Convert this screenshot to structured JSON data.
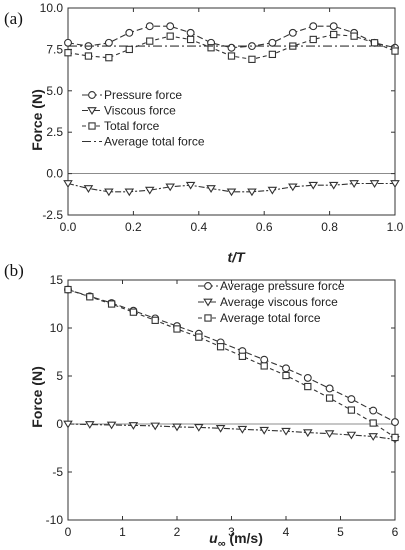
{
  "chart_data": [
    {
      "panel_label": "(a)",
      "type": "line",
      "xlabel_text": "t/T",
      "ylabel": "Force (N)",
      "xlim": [
        0.0,
        1.0
      ],
      "ylim": [
        -2.5,
        10.0
      ],
      "xticks": [
        "0.0",
        "0.2",
        "0.4",
        "0.6",
        "0.8",
        "1.0"
      ],
      "yticks": [
        "-2.5",
        "0.0",
        "2.5",
        "5.0",
        "7.5",
        "10.0"
      ],
      "legend_position": "center-left",
      "x": [
        0.0,
        0.0625,
        0.125,
        0.1875,
        0.25,
        0.3125,
        0.375,
        0.4375,
        0.5,
        0.5625,
        0.625,
        0.6875,
        0.75,
        0.8125,
        0.875,
        0.9375,
        1.0
      ],
      "series": [
        {
          "name": "Pressure force",
          "marker": "circle",
          "dash": "6,3",
          "values": [
            7.9,
            7.7,
            7.9,
            8.5,
            8.9,
            8.9,
            8.5,
            7.9,
            7.6,
            7.7,
            7.9,
            8.5,
            8.9,
            8.9,
            8.5,
            7.9,
            7.6
          ]
        },
        {
          "name": "Viscous force",
          "marker": "triangle",
          "dash": "6,2,2,2",
          "values": [
            -0.6,
            -0.9,
            -1.1,
            -1.1,
            -1.0,
            -0.8,
            -0.7,
            -0.9,
            -1.1,
            -1.1,
            -1.0,
            -0.8,
            -0.7,
            -0.7,
            -0.6,
            -0.6,
            -0.6
          ]
        },
        {
          "name": "Total force",
          "marker": "square",
          "dash": "4,3",
          "values": [
            7.3,
            7.1,
            7.0,
            7.5,
            8.0,
            8.3,
            8.1,
            7.6,
            7.1,
            6.9,
            7.2,
            7.7,
            8.1,
            8.4,
            8.3,
            7.9,
            7.4
          ]
        },
        {
          "name": "Average total force",
          "marker": "none",
          "dash": "9,3,2,3",
          "values": [
            7.7,
            7.7,
            7.7,
            7.7,
            7.7,
            7.7,
            7.7,
            7.7,
            7.7,
            7.7,
            7.7,
            7.7,
            7.7,
            7.7,
            7.7,
            7.7,
            7.7
          ]
        }
      ]
    },
    {
      "panel_label": "(b)",
      "type": "line",
      "xlabel_text": "u",
      "xlabel_sub": "∞",
      "xlabel_unit": " (m/s)",
      "ylabel": "Force (N)",
      "xlim": [
        0,
        6
      ],
      "ylim": [
        -10,
        15
      ],
      "xticks": [
        "0",
        "1",
        "2",
        "3",
        "4",
        "5",
        "6"
      ],
      "yticks": [
        "-10",
        "-5",
        "0",
        "5",
        "10",
        "15"
      ],
      "legend_position": "top-right",
      "x": [
        0,
        0.4,
        0.8,
        1.2,
        1.6,
        2.0,
        2.4,
        2.8,
        3.2,
        3.6,
        4.0,
        4.4,
        4.8,
        5.2,
        5.6,
        6.0
      ],
      "series": [
        {
          "name": "Average pressure force",
          "marker": "circle",
          "dash": "6,3",
          "values": [
            14.0,
            13.3,
            12.6,
            11.8,
            11.0,
            10.2,
            9.4,
            8.5,
            7.6,
            6.7,
            5.8,
            4.8,
            3.7,
            2.6,
            1.4,
            0.2
          ]
        },
        {
          "name": "Average viscous force",
          "marker": "triangle",
          "dash": "6,2,2,2",
          "values": [
            0.0,
            -0.05,
            -0.1,
            -0.15,
            -0.2,
            -0.3,
            -0.35,
            -0.45,
            -0.55,
            -0.65,
            -0.75,
            -0.9,
            -1.0,
            -1.15,
            -1.3,
            -1.6
          ]
        },
        {
          "name": "Average total force",
          "marker": "square",
          "dash": "4,3",
          "values": [
            14.0,
            13.25,
            12.5,
            11.65,
            10.8,
            9.9,
            9.05,
            8.05,
            7.05,
            6.05,
            5.05,
            3.9,
            2.7,
            1.45,
            0.1,
            -1.4
          ]
        }
      ]
    }
  ]
}
